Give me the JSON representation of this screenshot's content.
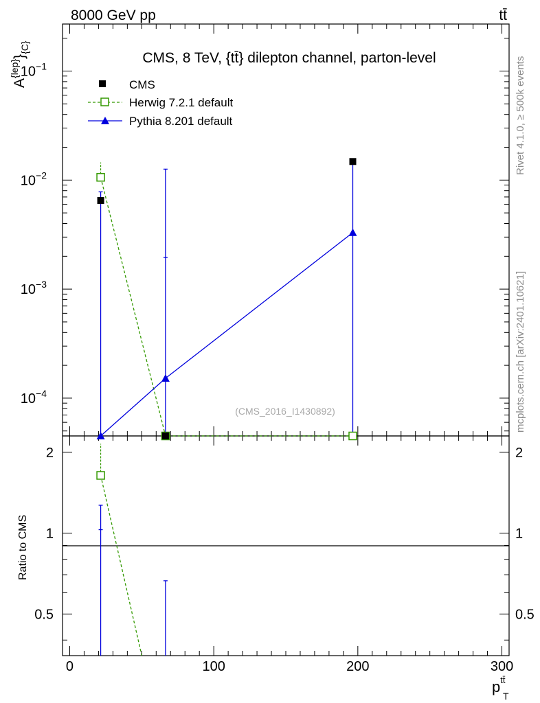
{
  "header": {
    "energy": "8000 GeV pp",
    "process": "tt̄"
  },
  "side": {
    "rivet": "Rivet 4.1.0, ≥ 500k events",
    "source": "mcplots.cern.ch [arXiv:2401.10621]"
  },
  "chart_data": {
    "type": "line",
    "title": "CMS, 8 TeV, {tt̄} dilepton channel, parton-level",
    "watermark": "(CMS_2016_I1430892)",
    "xlabel": "p",
    "xlabel_sub": "T",
    "xlabel_sup": "tt̄",
    "ylabel": "A",
    "ylabel_sup": "{lep}",
    "ylabel_tail": "}",
    "ylabel_sub": "{C}",
    "ratio_ylabel": "Ratio to CMS",
    "x_ticks": [
      "0",
      "100",
      "200",
      "300"
    ],
    "y_ticks_main": [
      {
        "base": "10",
        "exp": "−1"
      },
      {
        "base": "10",
        "exp": "−2"
      },
      {
        "base": "10",
        "exp": "−3"
      },
      {
        "base": "10",
        "exp": "−4"
      }
    ],
    "y_ticks_ratio": [
      "2",
      "1",
      "0.5"
    ],
    "xlim": [
      -5,
      305
    ],
    "ylim_main": [
      4.5e-05,
      0.27
    ],
    "ylim_ratio": [
      0.35,
      2.3
    ],
    "scale_y": "log",
    "legend_position": "top-left",
    "series": [
      {
        "name": "CMS",
        "color": "#000000",
        "marker": "filled-square",
        "x": [
          21.5,
          66.5,
          196.5
        ],
        "y": [
          0.0065,
          4.5e-05,
          0.0148
        ]
      },
      {
        "name": "Herwig 7.2.1 default",
        "color": "#339900",
        "marker": "open-square",
        "line": "dashed",
        "x": [
          21.5,
          66.5,
          196.5
        ],
        "y": [
          0.0106,
          4.5e-05,
          4.5e-05
        ],
        "err_hi": [
          0.0145,
          null,
          null
        ],
        "ratio": [
          1.64,
          null,
          null
        ],
        "ratio_err_hi": [
          2.15,
          null,
          null
        ]
      },
      {
        "name": "Pythia 8.201 default",
        "color": "#0000dd",
        "marker": "filled-triangle",
        "line": "solid",
        "x": [
          21.5,
          66.5,
          196.5
        ],
        "y": [
          4.5e-05,
          0.000152,
          0.0033
        ],
        "err_lo": [
          4.5e-05,
          4.5e-05,
          4.5e-05
        ],
        "err_hi": [
          0.0078,
          0.0126,
          0.0148
        ],
        "extra_err_hi": [
          null,
          0.00195,
          null
        ],
        "ratio_err_hi": [
          1.27,
          0.665,
          null
        ],
        "ratio_extra_err_hi": [
          1.03,
          null,
          null
        ]
      }
    ]
  }
}
